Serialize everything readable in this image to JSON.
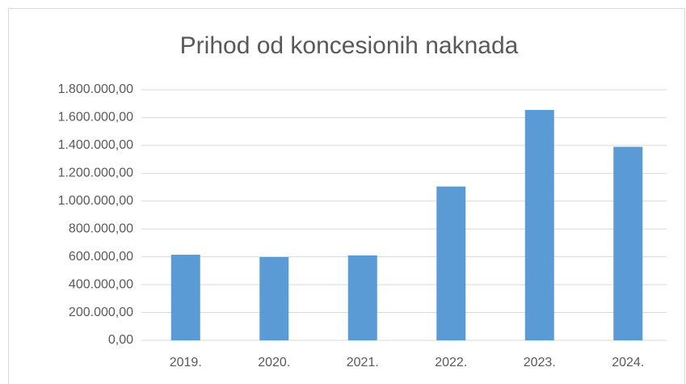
{
  "chart_data": {
    "type": "bar",
    "title": "Prihod od koncesionih naknada",
    "categories": [
      "2019.",
      "2020.",
      "2021.",
      "2022.",
      "2023.",
      "2024."
    ],
    "values": [
      615000,
      598000,
      610000,
      1105000,
      1655000,
      1390000
    ],
    "color": "#5b9bd5",
    "ylim": [
      0,
      1800000
    ],
    "yticks": [
      {
        "value": 0,
        "label": "0,00"
      },
      {
        "value": 200000,
        "label": "200.000,00"
      },
      {
        "value": 400000,
        "label": "400.000,00"
      },
      {
        "value": 600000,
        "label": "600.000,00"
      },
      {
        "value": 800000,
        "label": "800.000,00"
      },
      {
        "value": 1000000,
        "label": "1.000.000,00"
      },
      {
        "value": 1200000,
        "label": "1.200.000,00"
      },
      {
        "value": 1400000,
        "label": "1.400.000,00"
      },
      {
        "value": 1600000,
        "label": "1.600.000,00"
      },
      {
        "value": 1800000,
        "label": "1.800.000,00"
      }
    ],
    "grid": true
  }
}
